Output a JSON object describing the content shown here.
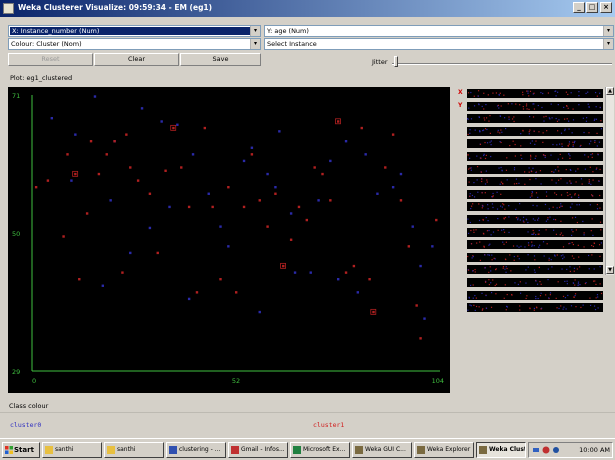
{
  "window": {
    "title": "Weka Clusterer Visualize: 09:59:34 - EM (eg1)",
    "controls": {
      "minimize": "_",
      "maximize": "□",
      "close": "×"
    }
  },
  "controls": {
    "x_axis": "X: Instance_number (Num)",
    "y_axis": "Y: age (Num)",
    "colour": "Colour: Cluster (Nom)",
    "select_instance": "Select Instance",
    "dropdown_arrow": "▾",
    "reset_label": "Reset",
    "clear_label": "Clear",
    "save_label": "Save",
    "jitter_label": "Jitter"
  },
  "plot": {
    "label": "Plot: eg1_clustered",
    "colors": {
      "cluster0": "#2a2aa8",
      "cluster1": "#b02020",
      "axis": "#3fbf3f"
    }
  },
  "chart_data": {
    "type": "scatter",
    "title": "Plot: eg1_clustered",
    "xlabel": "Instance_number",
    "ylabel": "age",
    "xlim": [
      0,
      104
    ],
    "ylim": [
      29,
      71
    ],
    "x_ticks": [
      "0",
      "52",
      "104"
    ],
    "y_ticks": [
      "29",
      "50",
      "71"
    ],
    "series": [
      {
        "name": "cluster0",
        "color": "#2a2aa8",
        "points": [
          [
            5,
            67.5
          ],
          [
            11,
            65
          ],
          [
            16,
            70.8
          ],
          [
            21,
            64
          ],
          [
            28,
            69
          ],
          [
            30,
            50.8
          ],
          [
            33,
            67
          ],
          [
            37,
            66.5
          ],
          [
            41,
            62
          ],
          [
            45,
            56
          ],
          [
            48,
            51
          ],
          [
            54,
            61
          ],
          [
            56,
            63
          ],
          [
            60,
            59
          ],
          [
            62,
            57
          ],
          [
            66,
            53
          ],
          [
            67,
            44
          ],
          [
            71,
            44
          ],
          [
            73,
            55
          ],
          [
            76,
            61
          ],
          [
            80,
            64
          ],
          [
            85,
            62
          ],
          [
            88,
            56
          ],
          [
            92,
            57
          ],
          [
            94,
            59
          ],
          [
            97,
            51
          ],
          [
            99,
            45
          ],
          [
            100,
            37
          ],
          [
            102,
            48
          ],
          [
            20,
            55
          ],
          [
            25,
            47
          ],
          [
            35,
            54
          ],
          [
            58,
            38
          ],
          [
            83,
            41
          ],
          [
            40,
            40
          ],
          [
            18,
            42
          ],
          [
            63,
            65.5
          ],
          [
            10,
            58
          ],
          [
            50,
            48
          ],
          [
            78,
            43
          ]
        ]
      },
      {
        "name": "cluster1",
        "color": "#b02020",
        "points": [
          [
            1,
            57
          ],
          [
            4,
            58
          ],
          [
            8,
            49.5
          ],
          [
            11,
            59
          ],
          [
            12,
            43
          ],
          [
            14,
            53
          ],
          [
            17,
            59
          ],
          [
            19,
            62
          ],
          [
            21,
            64
          ],
          [
            23,
            44
          ],
          [
            25,
            60
          ],
          [
            27,
            58
          ],
          [
            30,
            56
          ],
          [
            32,
            47
          ],
          [
            34,
            59.5
          ],
          [
            38,
            60
          ],
          [
            40,
            54
          ],
          [
            42,
            41
          ],
          [
            44,
            66
          ],
          [
            46,
            54
          ],
          [
            48,
            43
          ],
          [
            50,
            57
          ],
          [
            52,
            41
          ],
          [
            54,
            54
          ],
          [
            56,
            62
          ],
          [
            58,
            55
          ],
          [
            60,
            51
          ],
          [
            62,
            56
          ],
          [
            64,
            45
          ],
          [
            66,
            49
          ],
          [
            68,
            54
          ],
          [
            70,
            52
          ],
          [
            72,
            60
          ],
          [
            74,
            59
          ],
          [
            76,
            55
          ],
          [
            78,
            67
          ],
          [
            80,
            44
          ],
          [
            82,
            45
          ],
          [
            84,
            66
          ],
          [
            86,
            43
          ],
          [
            87,
            38
          ],
          [
            90,
            60
          ],
          [
            92,
            65
          ],
          [
            94,
            55
          ],
          [
            96,
            48
          ],
          [
            98,
            39
          ],
          [
            99,
            34
          ],
          [
            103,
            52
          ],
          [
            24,
            65
          ],
          [
            36,
            66
          ],
          [
            15,
            64
          ],
          [
            9,
            62
          ]
        ]
      }
    ]
  },
  "attributes": {
    "letters": [
      "X",
      "Y"
    ],
    "count": 18
  },
  "legend": {
    "title": "Class colour",
    "items": [
      {
        "label": "cluster0",
        "color": "#3030c0"
      },
      {
        "label": "cluster1",
        "color": "#d02020"
      }
    ]
  },
  "taskbar": {
    "start_label": "Start",
    "items": [
      {
        "label": "santhi",
        "icon": "folder-icon"
      },
      {
        "label": "santhi",
        "icon": "folder-icon"
      },
      {
        "label": "clustering - ...",
        "icon": "word-icon"
      },
      {
        "label": "Gmail - Infos...",
        "icon": "browser-icon"
      },
      {
        "label": "Microsoft Ex...",
        "icon": "excel-icon"
      },
      {
        "label": "Weka GUI C...",
        "icon": "weka-icon"
      },
      {
        "label": "Weka Explorer",
        "icon": "weka-icon"
      },
      {
        "label": "Weka Clust...",
        "icon": "weka-icon"
      }
    ],
    "clock": "10:00 AM"
  }
}
